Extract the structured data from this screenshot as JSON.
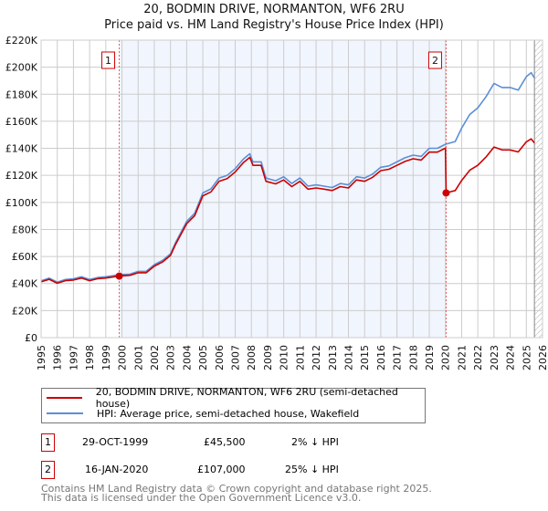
{
  "title": "20, BODMIN DRIVE, NORMANTON, WF6 2RU",
  "subtitle": "Price paid vs. HM Land Registry's House Price Index (HPI)",
  "chart_data": {
    "type": "line",
    "title": "20, BODMIN DRIVE, NORMANTON, WF6 2RU",
    "subtitle": "Price paid vs. HM Land Registry's House Price Index (HPI)",
    "xlim": [
      1995,
      2026
    ],
    "ylim": [
      0,
      220000
    ],
    "y_ticks": [
      0,
      20000,
      40000,
      60000,
      80000,
      100000,
      120000,
      140000,
      160000,
      180000,
      200000,
      220000
    ],
    "y_tick_labels": [
      "£0",
      "£20K",
      "£40K",
      "£60K",
      "£80K",
      "£100K",
      "£120K",
      "£140K",
      "£160K",
      "£180K",
      "£200K",
      "£220K"
    ],
    "x_ticks": [
      1995,
      1996,
      1997,
      1998,
      1999,
      2000,
      2001,
      2002,
      2003,
      2004,
      2005,
      2006,
      2007,
      2008,
      2009,
      2010,
      2011,
      2012,
      2013,
      2014,
      2015,
      2016,
      2017,
      2018,
      2019,
      2020,
      2021,
      2022,
      2023,
      2024,
      2025,
      2026
    ],
    "grid": true,
    "shaded_range": [
      1999.83,
      2020.04
    ],
    "hatched_from": 2025.5,
    "series": [
      {
        "name": "20, BODMIN DRIVE, NORMANTON, WF6 2RU (semi-detached house)",
        "color": "#cc0000",
        "x": [
          1995,
          1995.5,
          1996,
          1996.5,
          1997,
          1997.5,
          1998,
          1998.5,
          1999,
          1999.83,
          2000.5,
          2001,
          2001.5,
          2002,
          2002.5,
          2003,
          2003.3,
          2004,
          2004.5,
          2005,
          2005.5,
          2006,
          2006.5,
          2007,
          2007.5,
          2007.9,
          2008.1,
          2008.6,
          2008.9,
          2009.5,
          2010,
          2010.5,
          2011,
          2011.5,
          2012,
          2012.5,
          2013,
          2013.5,
          2014,
          2014.5,
          2015,
          2015.5,
          2016,
          2016.5,
          2017,
          2017.5,
          2018,
          2018.5,
          2019,
          2019.5,
          2020.0,
          2020.04,
          2020.6,
          2021,
          2021.5,
          2022,
          2022.5,
          2023,
          2023.5,
          2024,
          2024.5,
          2025,
          2025.3,
          2025.5
        ],
        "y": [
          41200,
          43100,
          40200,
          42100,
          42600,
          44100,
          42100,
          43600,
          44100,
          45500,
          46100,
          48000,
          48000,
          52900,
          55900,
          60800,
          68600,
          84300,
          90200,
          104900,
          107800,
          115600,
          117600,
          122500,
          129400,
          133300,
          127400,
          127400,
          115600,
          113700,
          116600,
          111700,
          115600,
          109800,
          110700,
          109800,
          108800,
          111700,
          110700,
          116600,
          115600,
          118600,
          123500,
          124500,
          127400,
          130300,
          132300,
          131300,
          137200,
          137200,
          140100,
          107000,
          108800,
          116300,
          123800,
          127500,
          133500,
          141000,
          138800,
          138800,
          137300,
          144800,
          147000,
          144000
        ]
      },
      {
        "name": "HPI: Average price, semi-detached house, Wakefield",
        "color": "#5b8fd6",
        "x": [
          1995,
          1995.5,
          1996,
          1996.5,
          1997,
          1997.5,
          1998,
          1998.5,
          1999,
          1999.83,
          2000.5,
          2001,
          2001.5,
          2002,
          2002.5,
          2003,
          2003.3,
          2004,
          2004.5,
          2005,
          2005.5,
          2006,
          2006.5,
          2007,
          2007.5,
          2007.9,
          2008.1,
          2008.6,
          2008.9,
          2009.5,
          2010,
          2010.5,
          2011,
          2011.5,
          2012,
          2012.5,
          2013,
          2013.5,
          2014,
          2014.5,
          2015,
          2015.5,
          2016,
          2016.5,
          2017,
          2017.5,
          2018,
          2018.5,
          2019,
          2019.5,
          2020.0,
          2020.6,
          2021,
          2021.5,
          2022,
          2022.5,
          2023,
          2023.5,
          2024,
          2024.5,
          2025,
          2025.3,
          2025.5
        ],
        "y": [
          42000,
          44000,
          41000,
          43000,
          43500,
          45000,
          43000,
          44500,
          45000,
          46500,
          47000,
          49000,
          49000,
          54000,
          57000,
          62000,
          70000,
          86000,
          92000,
          107000,
          110000,
          118000,
          120000,
          125000,
          132000,
          136000,
          130000,
          130000,
          118000,
          116000,
          119000,
          114000,
          118000,
          112000,
          113000,
          112000,
          111000,
          114000,
          113000,
          119000,
          118000,
          121000,
          126000,
          127000,
          130000,
          133000,
          135000,
          134000,
          140000,
          140000,
          143000,
          145000,
          155000,
          165000,
          170000,
          178000,
          188000,
          185000,
          185000,
          183000,
          193000,
          196000,
          192000
        ]
      }
    ],
    "annotations": [
      {
        "label": "1",
        "x": 1999.83,
        "y": 45500
      },
      {
        "label": "2",
        "x": 2020.04,
        "y": 107000
      }
    ]
  },
  "legend": [
    {
      "label": "20, BODMIN DRIVE, NORMANTON, WF6 2RU (semi-detached house)",
      "color": "#cc0000"
    },
    {
      "label": "HPI: Average price, semi-detached house, Wakefield",
      "color": "#5b8fd6"
    }
  ],
  "transactions": [
    {
      "num": "1",
      "date": "29-OCT-1999",
      "price": "£45,500",
      "hpi": "2% ↓ HPI"
    },
    {
      "num": "2",
      "date": "16-JAN-2020",
      "price": "£107,000",
      "hpi": "25% ↓ HPI"
    }
  ],
  "footer": {
    "line1": "Contains HM Land Registry data © Crown copyright and database right 2025.",
    "line2": "This data is licensed under the Open Government Licence v3.0."
  }
}
